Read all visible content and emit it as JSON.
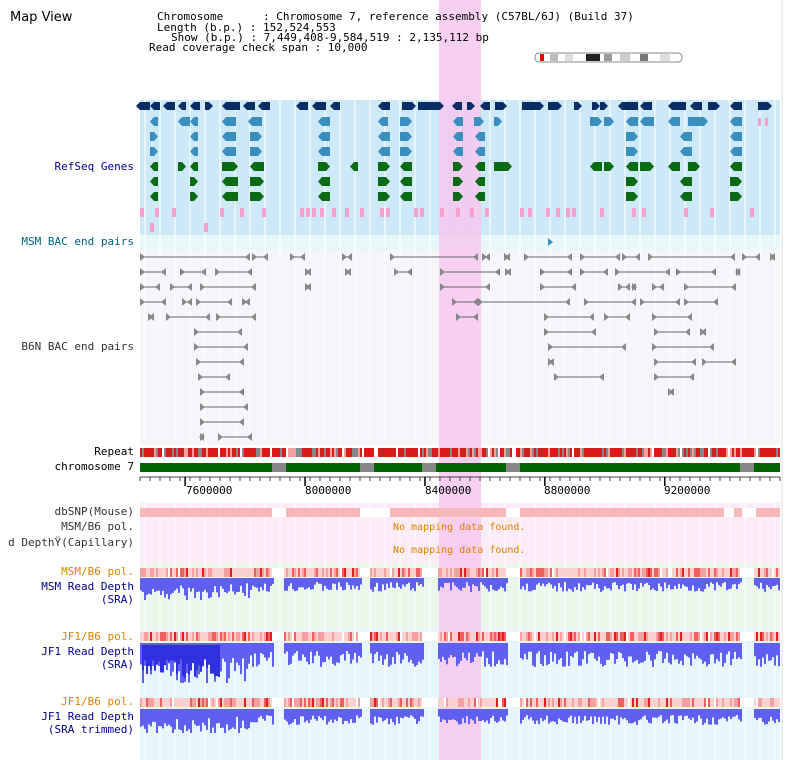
{
  "view": {
    "title": "Map View",
    "chromosome_line": "Chromosome      : Chromosome 7, reference assembly (C57BL/6J) (Build 37)",
    "length_line": "Length (b.p.) : 152,524,553",
    "show_line": "Show (b.p.) : 7,449,408-9,584,519 : 2,135,112 bp",
    "read_span_line": "Read coverage check span : 10,000"
  },
  "tracks": {
    "refseq": "RefSeq Genes",
    "msm_bac": "MSM BAC end pairs",
    "b6n_bac": "B6N BAC end pairs",
    "repeat": "Repeat",
    "chromosome": "chromosome 7",
    "dbsnp": "dbSNP(Mouse)",
    "msm_b6_pol_1": "MSM/B6 pol.",
    "read_depth_cap": "d DepthŸ(Capillary)",
    "msm_b6_pol_2": "MSM/B6 pol.",
    "msm_read_depth": "MSM Read Depth",
    "msm_read_depth_sub": "(SRA)",
    "jf1_b6_pol_1": "JF1/B6 pol.",
    "jf1_read_depth": "JF1 Read Depth",
    "jf1_read_depth_sub": "(SRA)",
    "jf1_b6_pol_2": "JF1/B6 pol.",
    "jf1_read_depth_trim": "JF1 Read Depth",
    "jf1_read_depth_trim_sub": "(SRA trimmed)"
  },
  "messages": {
    "nomap_1": "No mapping data found.",
    "nomap_2": "No mapping data found."
  },
  "axis": {
    "ticks": [
      "7600000",
      "8000000",
      "8400000",
      "8800000",
      "9200000"
    ]
  },
  "colors": {
    "refseq_bg": "#cde9f7",
    "gene_dark": "#0a2d66",
    "gene_mid": "#3a8fbf",
    "gene_green": "#0b6b14",
    "gene_pink": "#f7a0d0",
    "highlight": "#f6c8ee",
    "repeat_red": "#d81c1c",
    "chrom_green": "#006400",
    "snp_pink": "#f6b8b8",
    "depth_blue": "#6060f0",
    "label_blue": "#000090",
    "label_teal": "#006080",
    "label_orange": "#e08000"
  }
}
